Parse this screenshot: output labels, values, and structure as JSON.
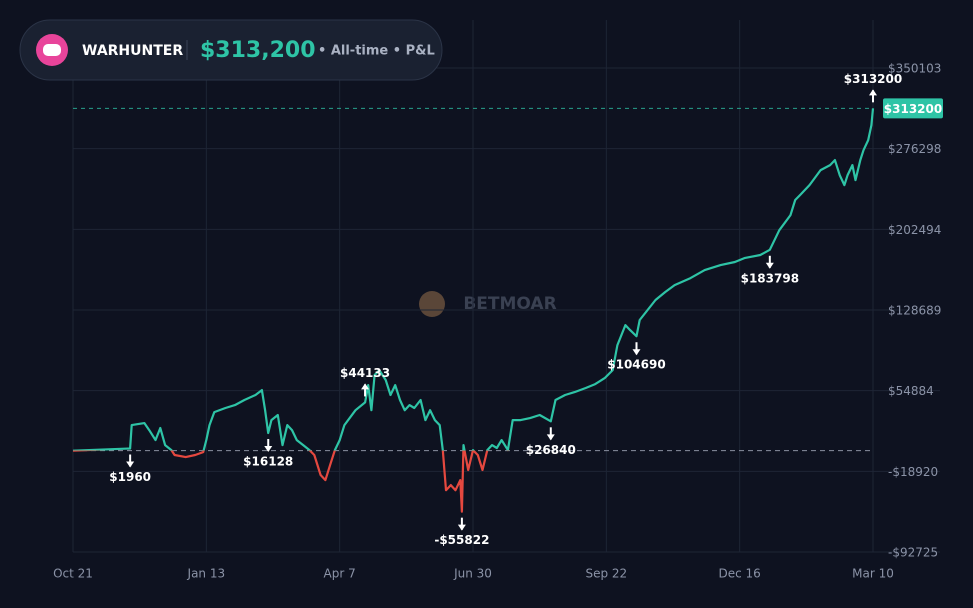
{
  "header": {
    "username": "WARHUNTER",
    "total": "$313,200",
    "caption": "• All-time • P&L"
  },
  "watermark": "BETMOAR",
  "chart_data": {
    "type": "line",
    "color": "#2ec4a6",
    "negative_color": "#e5483f",
    "x": [
      0,
      36,
      37,
      45,
      48,
      52,
      55,
      58,
      62,
      64,
      71,
      77,
      82,
      84,
      86,
      89,
      96,
      102,
      108,
      115,
      119,
      121,
      123,
      125,
      129,
      132,
      135,
      138,
      141,
      145,
      149,
      152,
      156,
      159,
      162,
      165,
      168,
      171,
      178,
      184,
      186,
      188,
      190,
      193,
      197,
      200,
      203,
      206,
      209,
      212,
      215,
      219,
      222,
      225,
      228,
      231,
      233,
      235,
      238,
      241,
      244,
      245,
      246,
      249,
      252,
      255,
      258,
      261,
      264,
      267,
      270,
      274,
      277,
      282,
      288,
      294,
      301,
      304,
      310,
      316,
      323,
      329,
      335,
      340,
      343,
      348,
      351,
      355,
      357,
      362,
      367,
      373,
      379,
      389,
      398,
      408,
      417,
      423,
      433,
      439,
      445,
      452,
      455,
      458,
      464,
      471,
      477,
      480,
      483,
      486,
      488,
      491,
      493,
      496,
      498,
      501,
      503,
      504
    ],
    "series": [
      {
        "name": "P&L",
        "values": [
          0,
          1960,
          23400,
          25200,
          18800,
          9700,
          20700,
          5100,
          500,
          -4000,
          -5900,
          -4000,
          -1300,
          9700,
          23400,
          35300,
          39000,
          41700,
          46300,
          50900,
          55400,
          37000,
          16128,
          28000,
          32600,
          5100,
          23400,
          18800,
          9700,
          5100,
          500,
          -4000,
          -22300,
          -26900,
          -13200,
          500,
          9700,
          23400,
          37000,
          44133,
          60000,
          37000,
          69200,
          73700,
          64600,
          50900,
          60000,
          46300,
          37000,
          41700,
          39000,
          46300,
          28000,
          37000,
          28000,
          23400,
          500,
          -36200,
          -31500,
          -36200,
          -26900,
          -55822,
          5100,
          -17700,
          500,
          -4000,
          -17700,
          500,
          5100,
          2400,
          9700,
          500,
          28000,
          28000,
          29800,
          32600,
          26840,
          46300,
          50900,
          53600,
          57300,
          60900,
          66400,
          73700,
          96600,
          114900,
          110300,
          104690,
          119500,
          128700,
          137800,
          145100,
          151500,
          157900,
          165200,
          169800,
          172600,
          176200,
          179000,
          183798,
          201700,
          215500,
          229300,
          233800,
          243000,
          256700,
          261300,
          265800,
          252100,
          243000,
          252100,
          261300,
          247500,
          265800,
          274900,
          284100,
          297800,
          313200
        ]
      }
    ],
    "xlim": [
      0,
      504
    ],
    "xticks": [
      {
        "value": 0,
        "label": "Oct 21"
      },
      {
        "value": 84,
        "label": "Jan 13"
      },
      {
        "value": 168,
        "label": "Apr 7"
      },
      {
        "value": 252,
        "label": "Jun 30"
      },
      {
        "value": 336,
        "label": "Sep 22"
      },
      {
        "value": 420,
        "label": "Dec 16"
      },
      {
        "value": 504,
        "label": "Mar 10"
      }
    ],
    "ylim": [
      -92725,
      350103
    ],
    "yticks": [
      {
        "value": 350103,
        "label": "$350103"
      },
      {
        "value": 276298,
        "label": "$276298"
      },
      {
        "value": 202494,
        "label": "$202494"
      },
      {
        "value": 128689,
        "label": "$128689"
      },
      {
        "value": 54884,
        "label": "$54884"
      },
      {
        "value": -18920,
        "label": "-$18920"
      },
      {
        "value": -92725,
        "label": "-$92725"
      }
    ],
    "grid": true,
    "last_value": {
      "value": 313200,
      "label": "$313200"
    },
    "annotations": [
      {
        "x": 36,
        "value": 1960,
        "label": "$1960",
        "direction": "down"
      },
      {
        "x": 123,
        "value": 16128,
        "label": "$16128",
        "direction": "down"
      },
      {
        "x": 184,
        "value": 44133,
        "label": "$44133",
        "direction": "up"
      },
      {
        "x": 245,
        "value": -55822,
        "label": "-$55822",
        "direction": "down"
      },
      {
        "x": 301,
        "value": 26840,
        "label": "$26840",
        "direction": "down"
      },
      {
        "x": 355,
        "value": 104690,
        "label": "$104690",
        "direction": "down"
      },
      {
        "x": 439,
        "value": 183798,
        "label": "$183798",
        "direction": "down"
      },
      {
        "x": 504,
        "value": 313200,
        "label": "$313200",
        "direction": "up"
      }
    ]
  }
}
